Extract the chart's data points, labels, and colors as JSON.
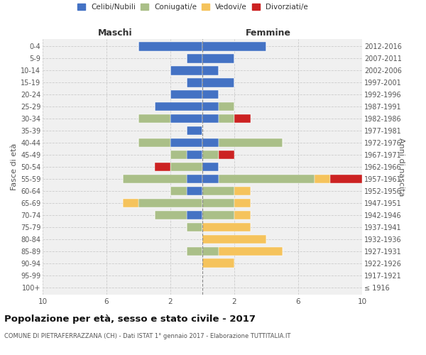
{
  "age_groups": [
    "100+",
    "95-99",
    "90-94",
    "85-89",
    "80-84",
    "75-79",
    "70-74",
    "65-69",
    "60-64",
    "55-59",
    "50-54",
    "45-49",
    "40-44",
    "35-39",
    "30-34",
    "25-29",
    "20-24",
    "15-19",
    "10-14",
    "5-9",
    "0-4"
  ],
  "birth_years": [
    "≤ 1916",
    "1917-1921",
    "1922-1926",
    "1927-1931",
    "1932-1936",
    "1937-1941",
    "1942-1946",
    "1947-1951",
    "1952-1956",
    "1957-1961",
    "1962-1966",
    "1967-1971",
    "1972-1976",
    "1977-1981",
    "1982-1986",
    "1987-1991",
    "1992-1996",
    "1997-2001",
    "2002-2006",
    "2007-2011",
    "2012-2016"
  ],
  "maschi": {
    "celibi": [
      0,
      0,
      0,
      0,
      0,
      0,
      1,
      0,
      1,
      1,
      0,
      1,
      2,
      1,
      2,
      3,
      2,
      1,
      2,
      1,
      4
    ],
    "coniugati": [
      0,
      0,
      0,
      1,
      0,
      1,
      2,
      4,
      1,
      4,
      2,
      1,
      2,
      0,
      2,
      0,
      0,
      0,
      0,
      0,
      0
    ],
    "vedovi": [
      0,
      0,
      0,
      0,
      0,
      0,
      0,
      1,
      0,
      0,
      0,
      0,
      0,
      0,
      0,
      0,
      0,
      0,
      0,
      0,
      0
    ],
    "divorziati": [
      0,
      0,
      0,
      0,
      0,
      0,
      0,
      0,
      0,
      0,
      1,
      0,
      0,
      0,
      0,
      0,
      0,
      0,
      0,
      0,
      0
    ]
  },
  "femmine": {
    "nubili": [
      0,
      0,
      0,
      0,
      0,
      0,
      0,
      0,
      0,
      1,
      1,
      0,
      1,
      0,
      1,
      1,
      1,
      2,
      1,
      2,
      4
    ],
    "coniugate": [
      0,
      0,
      0,
      1,
      0,
      0,
      2,
      2,
      2,
      6,
      0,
      1,
      4,
      0,
      1,
      1,
      0,
      0,
      0,
      0,
      0
    ],
    "vedove": [
      0,
      0,
      2,
      4,
      4,
      3,
      1,
      1,
      1,
      1,
      0,
      0,
      0,
      0,
      0,
      0,
      0,
      0,
      0,
      0,
      0
    ],
    "divorziate": [
      0,
      0,
      0,
      0,
      0,
      0,
      0,
      0,
      0,
      2,
      0,
      1,
      0,
      0,
      1,
      0,
      0,
      0,
      0,
      0,
      0
    ]
  },
  "colors": {
    "celibi": "#4472C4",
    "coniugati": "#AABF88",
    "vedovi": "#F5C35C",
    "divorziati": "#CC2222"
  },
  "legend_labels": [
    "Celibi/Nubili",
    "Coniugati/e",
    "Vedovi/e",
    "Divorziati/e"
  ],
  "title": "Popolazione per età, sesso e stato civile - 2017",
  "subtitle": "COMUNE DI PIETRAFERRAZZANA (CH) - Dati ISTAT 1° gennaio 2017 - Elaborazione TUTTITALIA.IT",
  "xlabel_left": "Maschi",
  "xlabel_right": "Femmine",
  "ylabel_left": "Fasce di età",
  "ylabel_right": "Anni di nascita",
  "xlim": 10,
  "bg_color": "#f0f0f0",
  "grid_color": "#cccccc"
}
